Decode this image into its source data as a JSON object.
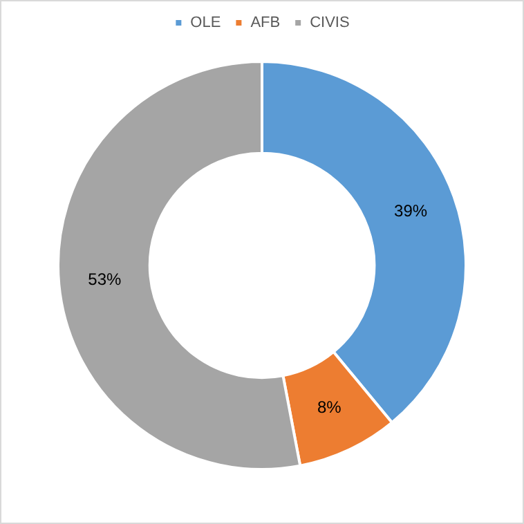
{
  "chart_data": {
    "type": "donut",
    "categories": [
      "OLE",
      "AFB",
      "CIVIS"
    ],
    "values": [
      39,
      8,
      53
    ],
    "colors": [
      "#5b9bd5",
      "#ed7d31",
      "#a5a5a5"
    ],
    "legend": "top",
    "value_labels": [
      "39%",
      "8%",
      "53%"
    ]
  }
}
